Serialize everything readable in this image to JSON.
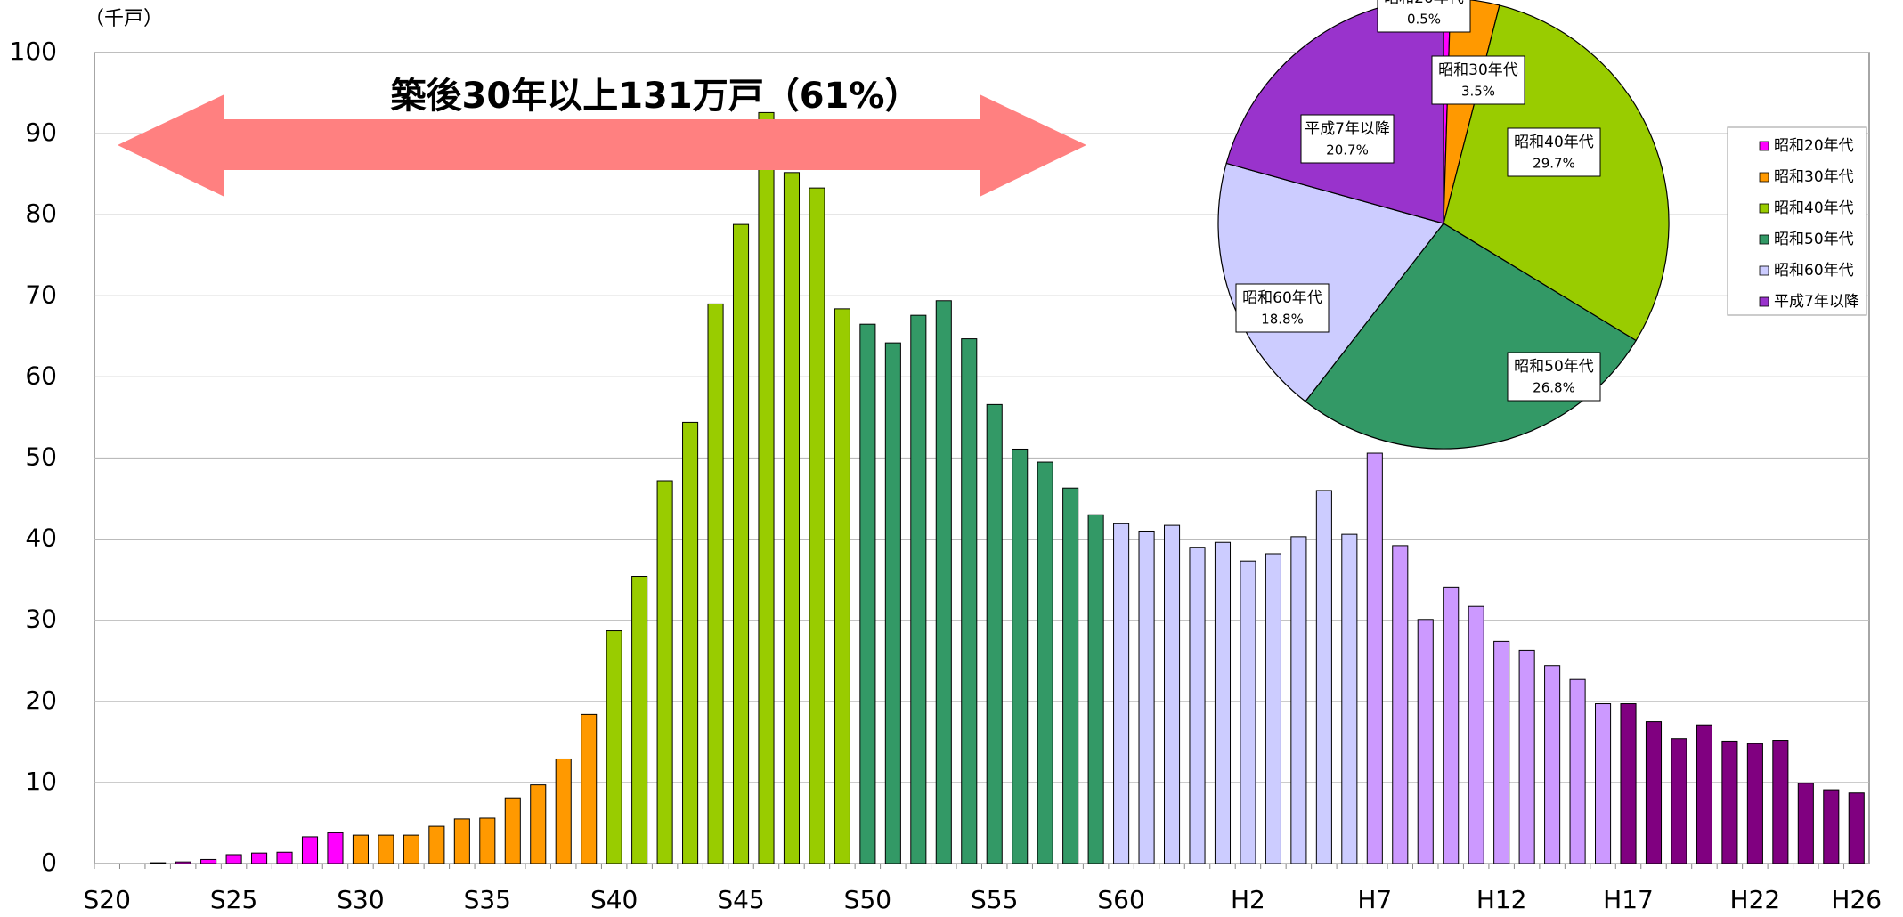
{
  "chart_data": [
    {
      "type": "bar",
      "title": "築後30年以上131万戸（61%）",
      "y_label": "（千戸）",
      "categories": [
        "S20",
        null,
        null,
        null,
        null,
        "S25",
        null,
        null,
        null,
        null,
        "S30",
        null,
        null,
        null,
        null,
        "S35",
        null,
        null,
        null,
        null,
        "S40",
        null,
        null,
        null,
        null,
        "S45",
        null,
        null,
        null,
        null,
        "S50",
        null,
        null,
        null,
        null,
        "S55",
        null,
        null,
        null,
        null,
        "S60",
        null,
        null,
        null,
        null,
        "H2",
        null,
        null,
        null,
        null,
        "H7",
        null,
        null,
        null,
        null,
        "H12",
        null,
        null,
        null,
        null,
        "H17",
        null,
        null,
        null,
        null,
        "H22",
        null,
        null,
        null,
        "H26"
      ],
      "values": [
        0,
        0,
        0.1,
        0.2,
        0.5,
        1.1,
        1.3,
        1.4,
        3.3,
        3.8,
        3.5,
        3.5,
        3.5,
        4.6,
        5.5,
        5.6,
        8.1,
        9.7,
        12.9,
        18.4,
        28.7,
        35.4,
        47.2,
        54.4,
        69.0,
        78.8,
        92.6,
        85.2,
        83.3,
        68.4,
        66.5,
        64.2,
        67.6,
        69.4,
        64.7,
        56.6,
        51.1,
        49.5,
        46.3,
        43.0,
        41.9,
        41.0,
        41.7,
        39.0,
        39.6,
        37.3,
        38.2,
        40.3,
        46.0,
        40.6,
        50.6,
        39.2,
        30.1,
        34.1,
        31.7,
        27.4,
        26.3,
        24.4,
        22.7,
        19.7,
        19.7,
        17.5,
        15.4,
        17.1,
        15.1,
        14.8,
        15.2,
        9.9,
        9.1,
        8.7
      ],
      "colors": [
        "#ff00ff",
        "#ff00ff",
        "#ff00ff",
        "#ff00ff",
        "#ff00ff",
        "#ff00ff",
        "#ff00ff",
        "#ff00ff",
        "#ff00ff",
        "#ff00ff",
        "#ff9900",
        "#ff9900",
        "#ff9900",
        "#ff9900",
        "#ff9900",
        "#ff9900",
        "#ff9900",
        "#ff9900",
        "#ff9900",
        "#ff9900",
        "#99cc00",
        "#99cc00",
        "#99cc00",
        "#99cc00",
        "#99cc00",
        "#99cc00",
        "#99cc00",
        "#99cc00",
        "#99cc00",
        "#99cc00",
        "#339966",
        "#339966",
        "#339966",
        "#339966",
        "#339966",
        "#339966",
        "#339966",
        "#339966",
        "#339966",
        "#339966",
        "#ccccff",
        "#ccccff",
        "#ccccff",
        "#ccccff",
        "#ccccff",
        "#ccccff",
        "#ccccff",
        "#ccccff",
        "#ccccff",
        "#ccccff",
        "#cc99ff",
        "#cc99ff",
        "#cc99ff",
        "#cc99ff",
        "#cc99ff",
        "#cc99ff",
        "#cc99ff",
        "#cc99ff",
        "#cc99ff",
        "#cc99ff",
        "#800080",
        "#800080",
        "#800080",
        "#800080",
        "#800080",
        "#800080",
        "#800080",
        "#800080",
        "#800080",
        "#800080"
      ],
      "ylim": [
        0,
        100
      ],
      "yticks": [
        0,
        10,
        20,
        30,
        40,
        50,
        60,
        70,
        80,
        90,
        100
      ],
      "grid": true
    },
    {
      "type": "pie",
      "labels": [
        "昭和20年代",
        "昭和30年代",
        "昭和40年代",
        "昭和50年代",
        "昭和60年代",
        "平成7年以降"
      ],
      "values": [
        0.5,
        3.5,
        29.7,
        26.8,
        18.8,
        20.7
      ],
      "value_labels": [
        "0.5%",
        "3.5%",
        "29.7%",
        "26.8%",
        "18.8%",
        "20.7%"
      ],
      "colors": [
        "#ff00ff",
        "#ff9900",
        "#99cc00",
        "#339966",
        "#ccccff",
        "#9933cc"
      ],
      "legend": "right"
    }
  ]
}
